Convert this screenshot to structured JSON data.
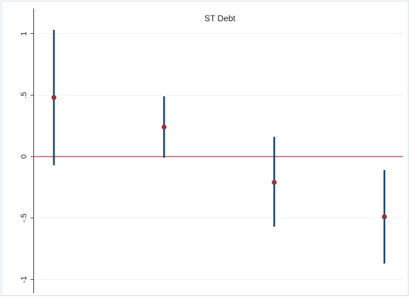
{
  "chart_data": {
    "type": "errorbar",
    "title": "ST Debt",
    "categories": [
      null,
      null,
      null,
      null
    ],
    "values": [
      0.48,
      0.24,
      -0.21,
      -0.49
    ],
    "ci_low": [
      -0.07,
      -0.01,
      -0.57,
      -0.87
    ],
    "ci_high": [
      1.03,
      0.49,
      0.16,
      -0.11
    ],
    "point_color": "#90353b",
    "bar_color": "#1a476f",
    "hline": 0,
    "hline_color": "#c25b72",
    "ylim": [
      -1.1,
      1.17
    ],
    "yticks": [
      -1,
      {
        "value": -0.5,
        "label": "-.5"
      },
      0,
      {
        "value": 0.5,
        "label": ".5"
      },
      1
    ],
    "grid": true
  }
}
